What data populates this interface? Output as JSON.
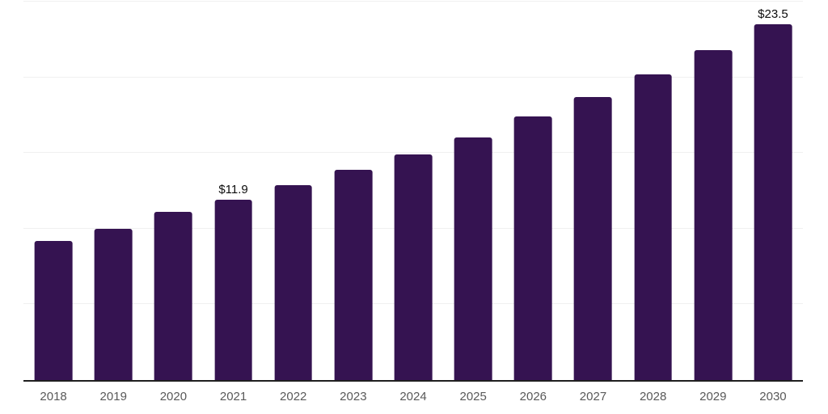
{
  "chart_data": {
    "type": "bar",
    "title": "",
    "xlabel": "",
    "ylabel": "",
    "categories": [
      "2018",
      "2019",
      "2020",
      "2021",
      "2022",
      "2023",
      "2024",
      "2025",
      "2026",
      "2027",
      "2028",
      "2029",
      "2030"
    ],
    "values": [
      9.2,
      10.0,
      11.1,
      11.9,
      12.9,
      13.9,
      14.9,
      16.0,
      17.4,
      18.7,
      20.2,
      21.8,
      23.5
    ],
    "shown_point_labels": [
      {
        "category": "2021",
        "text": "$11.9"
      },
      {
        "category": "2030",
        "text": "$23.5"
      }
    ],
    "ylim": [
      0,
      25
    ],
    "gridline_values": [
      5,
      10,
      15,
      20,
      25
    ],
    "grid": "horizontal-only",
    "legend": "none",
    "y_axis_ticks_visible": false
  },
  "colors": {
    "bar_fill": "#351351",
    "axis_line": "#1f1f1f",
    "gridline": "#f0f0f0",
    "x_label_text": "#595959",
    "point_label_text": "#0d0d0d",
    "background": "#ffffff"
  }
}
